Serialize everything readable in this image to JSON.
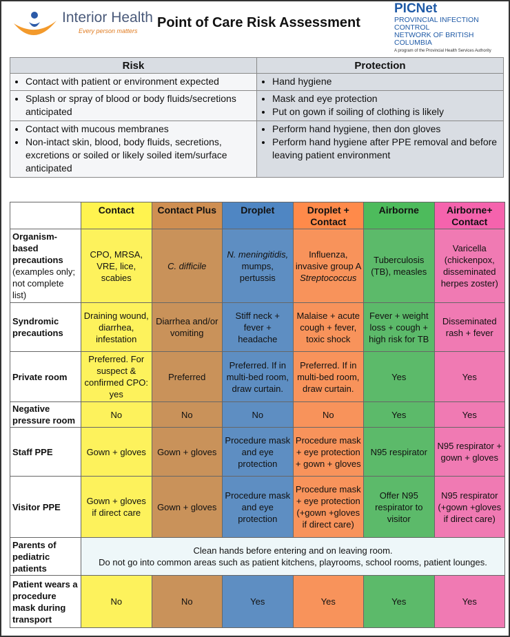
{
  "header": {
    "logo_name": "Interior Health",
    "logo_tagline": "Every person matters",
    "title": "Point of Care Risk Assessment",
    "org_name": "PICNet",
    "org_line1": "PROVINCIAL INFECTION CONTROL",
    "org_line2": "NETWORK OF BRITISH COLUMBIA",
    "org_note": "A program of the Provincial Health Services Authority"
  },
  "risk_table": {
    "headers": [
      "Risk",
      "Protection"
    ],
    "rows": [
      [
        [
          "Contact with patient or environment expected"
        ],
        [
          "Hand hygiene"
        ]
      ],
      [
        [
          "Splash or spray of blood or body fluids/secretions anticipated"
        ],
        [
          "Mask and eye protection",
          "Put on gown if soiling of clothing is likely"
        ]
      ],
      [
        [
          "Contact with mucous membranes",
          "Non-intact skin, blood, body fluids, secretions, excretions or soiled or likely soiled item/surface anticipated"
        ],
        [
          "Perform hand hygiene, then don gloves",
          "Perform hand hygiene after PPE removal and before leaving patient environment"
        ]
      ]
    ]
  },
  "precautions_table": {
    "columns": [
      "Contact",
      "Contact Plus",
      "Droplet",
      "Droplet + Contact",
      "Airborne",
      "Airborne+ Contact"
    ],
    "rows": [
      {
        "label": "Organism-based precautions",
        "note": "(examples only; not complete list)",
        "cells": [
          "CPO, MRSA, VRE, lice, scabies",
          [
            {
              "text": "C. difficile",
              "italic": true
            }
          ],
          [
            {
              "text": "N. meningitidis,",
              "italic": true
            },
            {
              "text": "mumps, pertussis"
            }
          ],
          [
            {
              "text": "Influenza, invasive group A"
            },
            {
              "text": "Streptococcus",
              "italic": true
            }
          ],
          "Tuberculosis (TB), measles",
          "Varicella (chickenpox, disseminated herpes zoster)"
        ]
      },
      {
        "label": "Syndromic precautions",
        "cells": [
          "Draining wound, diarrhea, infestation",
          "Diarrhea and/or vomiting",
          "Stiff neck + fever + headache",
          "Malaise + acute cough + fever, toxic shock",
          "Fever + weight loss + cough + high risk for TB",
          "Disseminated rash + fever"
        ]
      },
      {
        "label": "Private room",
        "cells": [
          "Preferred. For suspect & confirmed CPO: yes",
          "Preferred",
          "Preferred. If in multi-bed room, draw curtain.",
          "Preferred. If in multi-bed room, draw curtain.",
          "Yes",
          "Yes"
        ]
      },
      {
        "label": "Negative pressure room",
        "cells": [
          "No",
          "No",
          "No",
          "No",
          "Yes",
          "Yes"
        ]
      },
      {
        "label": "Staff PPE",
        "cells": [
          "Gown + gloves",
          "Gown + gloves",
          "Procedure mask and eye protection",
          "Procedure mask + eye protection + gown + gloves",
          "N95 respirator",
          "N95 respirator + gown + gloves"
        ]
      },
      {
        "label": "Visitor PPE",
        "cells": [
          "Gown + gloves if direct care",
          "Gown + gloves",
          "Procedure mask and eye protection",
          "Procedure mask + eye protection (+gown +gloves if direct care)",
          "Offer N95 respirator to visitor",
          "N95 respirator (+gown +gloves if direct care)"
        ]
      },
      {
        "label": "Parents of pediatric patients",
        "merged": [
          "Clean hands before entering and on leaving room.",
          "Do not go into common areas such as patient kitchens, playrooms, school rooms, patient lounges."
        ]
      },
      {
        "label": "Patient wears a procedure mask during transport",
        "cells": [
          "No",
          "No",
          "Yes",
          "Yes",
          "Yes",
          "Yes"
        ]
      }
    ]
  }
}
